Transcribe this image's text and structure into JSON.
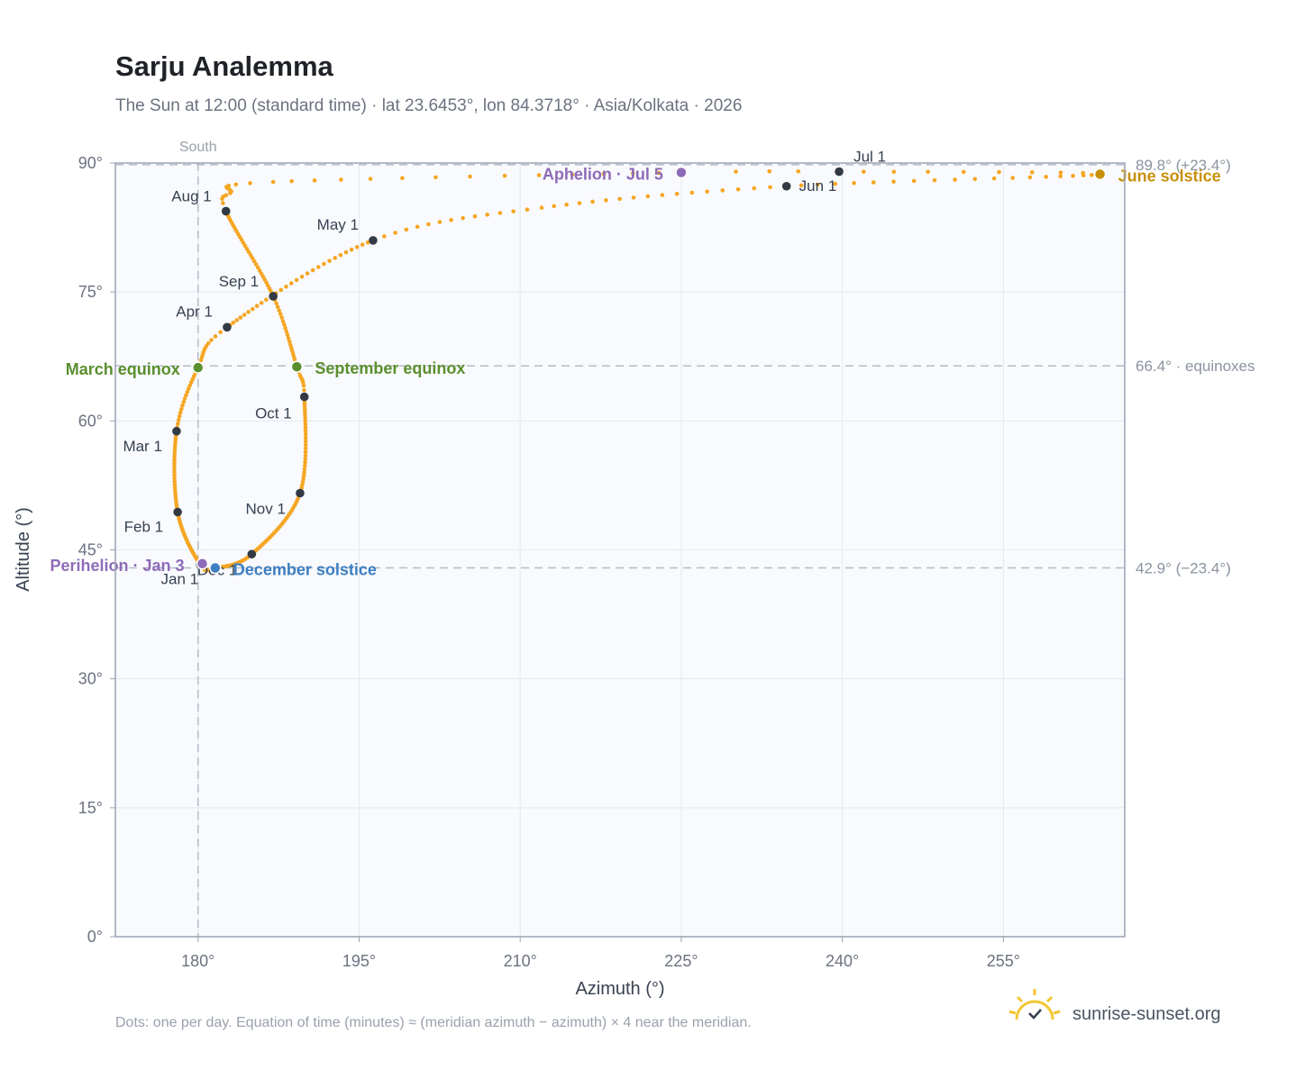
{
  "header": {
    "title": "Sarju Analemma",
    "subtitle": "The Sun at 12:00 (standard time) · lat 23.6453°, lon 84.3718° · Asia/Kolkata · 2026"
  },
  "footer": {
    "note": "Dots: one per day. Equation of time (minutes) ≈ (meridian azimuth − azimuth) × 4 near the meridian.",
    "brand": "sunrise-sunset.org",
    "brand_icon": "sun-check-icon"
  },
  "colors": {
    "path": "#f5a623",
    "month": "#343a44",
    "equinox": "#5a8f2e",
    "perihelion": "#8e6bb8",
    "aphelion": "#8e6bb8",
    "june_solstice": "#c8900a",
    "december_solstice": "#3d7fc1",
    "plot_bg": "#f8fafd",
    "grid": "#e5e8ee",
    "frame": "#9aa3b2",
    "refline": "#b4bcc8"
  },
  "chart_data": {
    "type": "scatter",
    "title": "Sarju Analemma",
    "xlabel": "Azimuth (°)",
    "ylabel": "Altitude (°)",
    "xlim": [
      172.3,
      266.3
    ],
    "ylim": [
      0,
      90
    ],
    "xticks": [
      180,
      195,
      210,
      225,
      240,
      255
    ],
    "xtick_labels": [
      "180°",
      "195°",
      "210°",
      "225°",
      "240°",
      "255°"
    ],
    "yticks": [
      0,
      15,
      30,
      45,
      60,
      75,
      90
    ],
    "ytick_labels": [
      "0°",
      "15°",
      "30°",
      "45°",
      "60°",
      "75°",
      "90°"
    ],
    "grid": true,
    "meridian": {
      "azimuth": 180,
      "label": "South"
    },
    "reference_lines": [
      {
        "altitude": 89.8,
        "label": "89.8° (+23.4°)"
      },
      {
        "altitude": 66.4,
        "label": "66.4° · equinoxes"
      },
      {
        "altitude": 42.9,
        "label": "42.9° (−23.4°)"
      }
    ],
    "anchors": [
      {
        "day": 1,
        "az": 180.2,
        "alt": 43.3
      },
      {
        "day": 32,
        "az": 178.1,
        "alt": 49.4
      },
      {
        "day": 60,
        "az": 178.0,
        "alt": 58.8
      },
      {
        "day": 79,
        "az": 180.0,
        "alt": 66.2
      },
      {
        "day": 91,
        "az": 182.7,
        "alt": 70.9
      },
      {
        "day": 121,
        "az": 196.3,
        "alt": 81.0
      },
      {
        "day": 135,
        "az": 212.0,
        "alt": 84.8
      },
      {
        "day": 152,
        "az": 234.8,
        "alt": 87.3
      },
      {
        "day": 172,
        "az": 264.0,
        "alt": 88.7
      },
      {
        "day": 182,
        "az": 239.7,
        "alt": 89.0
      },
      {
        "day": 186,
        "az": 225.0,
        "alt": 88.9
      },
      {
        "day": 200,
        "az": 187.0,
        "alt": 87.8
      },
      {
        "day": 208,
        "az": 183.0,
        "alt": 86.5
      },
      {
        "day": 213,
        "az": 182.6,
        "alt": 84.4
      },
      {
        "day": 244,
        "az": 187.0,
        "alt": 74.5
      },
      {
        "day": 266,
        "az": 189.2,
        "alt": 66.3
      },
      {
        "day": 274,
        "az": 189.9,
        "alt": 62.8
      },
      {
        "day": 305,
        "az": 189.5,
        "alt": 51.6
      },
      {
        "day": 335,
        "az": 185.0,
        "alt": 44.5
      },
      {
        "day": 355,
        "az": 181.6,
        "alt": 42.9
      },
      {
        "day": 366,
        "az": 180.2,
        "alt": 43.3
      }
    ],
    "month_markers": [
      {
        "label": "Jan 1",
        "az": 180.2,
        "alt": 43.3
      },
      {
        "label": "Feb 1",
        "az": 178.1,
        "alt": 49.4
      },
      {
        "label": "Mar 1",
        "az": 178.0,
        "alt": 58.8
      },
      {
        "label": "Apr 1",
        "az": 182.7,
        "alt": 70.9
      },
      {
        "label": "May 1",
        "az": 196.3,
        "alt": 81.0
      },
      {
        "label": "Jun 1",
        "az": 234.8,
        "alt": 87.3
      },
      {
        "label": "Jul 1",
        "az": 239.7,
        "alt": 89.0
      },
      {
        "label": "Aug 1",
        "az": 182.6,
        "alt": 84.4
      },
      {
        "label": "Sep 1",
        "az": 187.0,
        "alt": 74.5
      },
      {
        "label": "Oct 1",
        "az": 189.9,
        "alt": 62.8
      },
      {
        "label": "Nov 1",
        "az": 189.5,
        "alt": 51.6
      },
      {
        "label": "Dec 1",
        "az": 185.0,
        "alt": 44.5
      }
    ],
    "events": [
      {
        "key": "march_equinox",
        "label": "March equinox",
        "az": 180.0,
        "alt": 66.2,
        "color": "#5a8f2e"
      },
      {
        "key": "september_equinox",
        "label": "September equinox",
        "az": 189.2,
        "alt": 66.3,
        "color": "#5a8f2e"
      },
      {
        "key": "june_solstice",
        "label": "June solstice",
        "az": 264.0,
        "alt": 88.7,
        "color": "#c8900a"
      },
      {
        "key": "december_solstice",
        "label": "December solstice",
        "az": 181.6,
        "alt": 42.9,
        "color": "#3d7fc1"
      },
      {
        "key": "perihelion",
        "label": "Perihelion · Jan 3",
        "az": 180.4,
        "alt": 43.4,
        "color": "#8e6bb8"
      },
      {
        "key": "aphelion",
        "label": "Aphelion · Jul 5",
        "az": 225.0,
        "alt": 88.9,
        "color": "#8e6bb8"
      }
    ]
  }
}
